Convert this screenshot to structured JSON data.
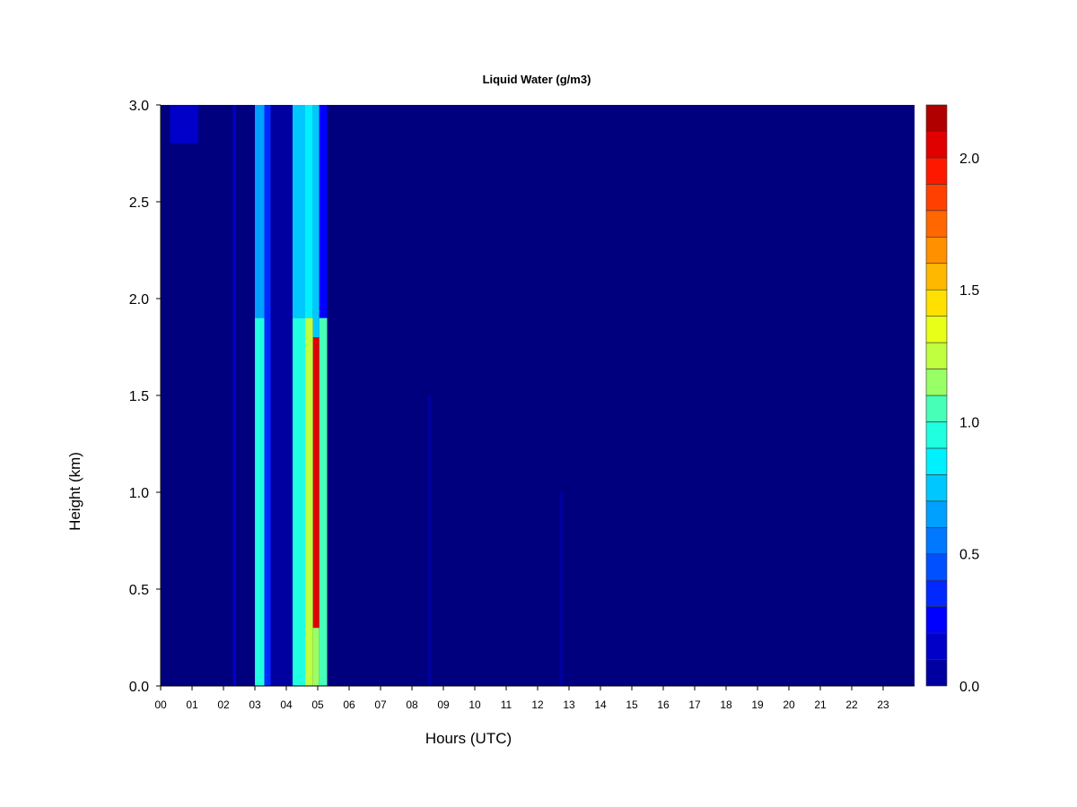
{
  "chart_data": {
    "type": "heatmap",
    "title": "Liquid Water (g/m3)",
    "xlabel": "Hours (UTC)",
    "ylabel": "Height (km)",
    "x_ticks": [
      "00",
      "01",
      "02",
      "03",
      "04",
      "05",
      "06",
      "07",
      "08",
      "09",
      "10",
      "11",
      "12",
      "13",
      "14",
      "15",
      "16",
      "17",
      "18",
      "19",
      "20",
      "21",
      "22",
      "23"
    ],
    "y_ticks": [
      "0.0",
      "0.5",
      "1.0",
      "1.5",
      "2.0",
      "2.5",
      "3.0"
    ],
    "xlim": [
      0,
      24
    ],
    "ylim": [
      0,
      3.0
    ],
    "colorbar": {
      "ticks": [
        "0.0",
        "0.5",
        "1.0",
        "1.5",
        "2.0"
      ],
      "range": [
        0,
        2.2
      ],
      "levels": 22,
      "colors": [
        "#00007f",
        "#0000a0",
        "#0000c8",
        "#0000ff",
        "#0028ff",
        "#0050ff",
        "#0078ff",
        "#00a0ff",
        "#00c8ff",
        "#00f0ff",
        "#20ffdf",
        "#48ffb7",
        "#70ff8f",
        "#98ff67",
        "#c0ff3f",
        "#e8ff17",
        "#ffe000",
        "#ffb800",
        "#ff9000",
        "#ff6800",
        "#ff4000",
        "#ff1800",
        "#e00000",
        "#b00000",
        "#7f0000"
      ]
    },
    "series": [
      {
        "x_start": 3.0,
        "x_end": 3.3,
        "y_start": 0.0,
        "y_end": 1.9,
        "value": 0.9
      },
      {
        "x_start": 3.0,
        "x_end": 3.3,
        "y_start": 1.9,
        "y_end": 3.0,
        "value": 0.6
      },
      {
        "x_start": 3.3,
        "x_end": 3.5,
        "y_start": 0.0,
        "y_end": 3.0,
        "value": 0.4
      },
      {
        "x_start": 3.5,
        "x_end": 4.2,
        "y_start": 0.0,
        "y_end": 3.0,
        "value": 0.1
      },
      {
        "x_start": 4.2,
        "x_end": 4.6,
        "y_start": 0.0,
        "y_end": 1.9,
        "value": 0.9
      },
      {
        "x_start": 4.2,
        "x_end": 4.6,
        "y_start": 1.9,
        "y_end": 3.0,
        "value": 0.7
      },
      {
        "x_start": 4.6,
        "x_end": 4.85,
        "y_start": 0.0,
        "y_end": 1.9,
        "value": 1.3
      },
      {
        "x_start": 4.6,
        "x_end": 4.85,
        "y_start": 1.9,
        "y_end": 3.0,
        "value": 0.8
      },
      {
        "x_start": 4.85,
        "x_end": 5.05,
        "y_start": 0.3,
        "y_end": 1.8,
        "value": 2.0
      },
      {
        "x_start": 4.85,
        "x_end": 5.05,
        "y_start": 0.0,
        "y_end": 0.3,
        "value": 1.2
      },
      {
        "x_start": 4.85,
        "x_end": 5.05,
        "y_start": 1.8,
        "y_end": 3.0,
        "value": 0.7
      },
      {
        "x_start": 5.05,
        "x_end": 5.3,
        "y_start": 0.0,
        "y_end": 1.9,
        "value": 1.0
      },
      {
        "x_start": 5.05,
        "x_end": 5.3,
        "y_start": 1.9,
        "y_end": 3.0,
        "value": 0.3
      },
      {
        "x_start": 0.3,
        "x_end": 1.2,
        "y_start": 2.8,
        "y_end": 3.0,
        "value": 0.2
      },
      {
        "x_start": 2.3,
        "x_end": 2.4,
        "y_start": 0.0,
        "y_end": 3.0,
        "value": 0.2
      },
      {
        "x_start": 8.5,
        "x_end": 8.6,
        "y_start": 0.0,
        "y_end": 1.5,
        "value": 0.1
      },
      {
        "x_start": 12.7,
        "x_end": 12.8,
        "y_start": 0.0,
        "y_end": 1.0,
        "value": 0.1
      }
    ]
  }
}
